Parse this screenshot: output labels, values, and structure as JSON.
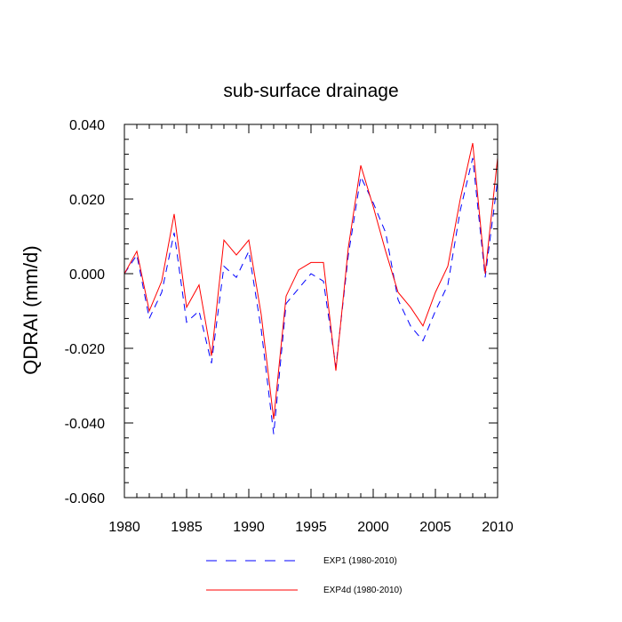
{
  "chart_data": {
    "type": "line",
    "title": "sub-surface drainage",
    "xlabel": "",
    "ylabel": "QDRAI  (mm/d)",
    "xlim": [
      1980,
      2010
    ],
    "ylim": [
      -0.06,
      0.04
    ],
    "x_ticks": [
      1980,
      1985,
      1990,
      1995,
      2000,
      2005,
      2010
    ],
    "x_tick_labels": [
      "1980",
      "1985",
      "1990",
      "1995",
      "2000",
      "2005",
      "2010"
    ],
    "y_ticks": [
      -0.06,
      -0.04,
      -0.02,
      0.0,
      0.02,
      0.04
    ],
    "y_tick_labels": [
      "-0.060",
      "-0.040",
      "-0.020",
      "0.000",
      "0.020",
      "0.040"
    ],
    "grid": false,
    "legend_position": "bottom-center",
    "x": [
      1980,
      1981,
      1982,
      1983,
      1984,
      1985,
      1986,
      1987,
      1988,
      1989,
      1990,
      1991,
      1992,
      1993,
      1994,
      1995,
      1996,
      1997,
      1998,
      1999,
      2000,
      2001,
      2002,
      2003,
      2004,
      2005,
      2006,
      2007,
      2008,
      2009,
      2010
    ],
    "series": [
      {
        "name": "EXP1 (1980-2010)",
        "color": "#0000ff",
        "style": "dashed",
        "values": [
          0.0,
          0.005,
          -0.012,
          -0.005,
          0.011,
          -0.013,
          -0.01,
          -0.024,
          0.002,
          -0.001,
          0.006,
          -0.015,
          -0.043,
          -0.008,
          -0.004,
          0.0,
          -0.002,
          -0.025,
          0.005,
          0.026,
          0.019,
          0.011,
          -0.007,
          -0.014,
          -0.018,
          -0.01,
          -0.003,
          0.017,
          0.031,
          -0.001,
          0.025
        ]
      },
      {
        "name": "EXP4d (1980-2010)",
        "color": "#ff0000",
        "style": "solid",
        "values": [
          0.0,
          0.006,
          -0.01,
          -0.002,
          0.016,
          -0.009,
          -0.003,
          -0.022,
          0.009,
          0.005,
          0.009,
          -0.011,
          -0.039,
          -0.006,
          0.001,
          0.003,
          0.003,
          -0.026,
          0.007,
          0.029,
          0.018,
          0.006,
          -0.005,
          -0.009,
          -0.014,
          -0.005,
          0.002,
          0.02,
          0.035,
          0.0,
          0.031
        ]
      }
    ]
  }
}
